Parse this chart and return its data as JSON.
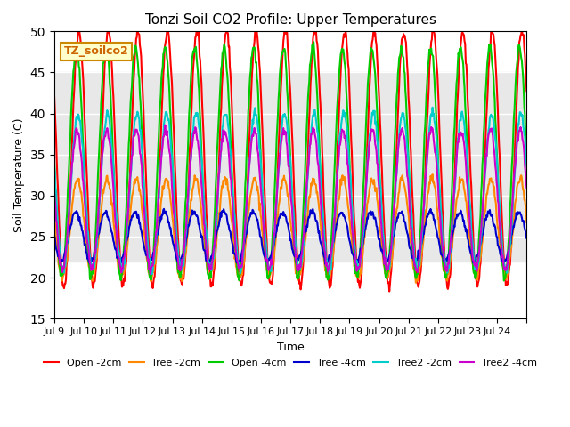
{
  "title": "Tonzi Soil CO2 Profile: Upper Temperatures",
  "ylabel": "Soil Temperature (C)",
  "xlabel": "Time",
  "ylim": [
    15,
    50
  ],
  "yticks": [
    15,
    20,
    25,
    30,
    35,
    40,
    45,
    50
  ],
  "x_labels": [
    "Jul 9",
    "Jul 10",
    "Jul 11",
    "Jul 12",
    "Jul 13",
    "Jul 14",
    "Jul 15",
    "Jul 16",
    "Jul 17",
    "Jul 18",
    "Jul 19",
    "Jul 20",
    "Jul 21",
    "Jul 22",
    "Jul 23",
    "Jul 24"
  ],
  "label_box_text": "TZ_soilco2",
  "label_box_color": "#ffffcc",
  "label_box_edge": "#cc8800",
  "shaded_band": [
    22,
    45
  ],
  "shaded_color": "#e8e8e8",
  "series": [
    {
      "name": "Open -2cm",
      "color": "#ff0000",
      "lw": 1.5
    },
    {
      "name": "Tree -2cm",
      "color": "#ff8800",
      "lw": 1.5
    },
    {
      "name": "Open -4cm",
      "color": "#00cc00",
      "lw": 1.5
    },
    {
      "name": "Tree -4cm",
      "color": "#0000cc",
      "lw": 1.5
    },
    {
      "name": "Tree2 -2cm",
      "color": "#00cccc",
      "lw": 1.5
    },
    {
      "name": "Tree2 -4cm",
      "color": "#cc00cc",
      "lw": 1.5
    }
  ],
  "n_days": 16,
  "pts_per_day": 48,
  "open2_peak": 50,
  "open2_min": 19,
  "tree2_peak": 32,
  "tree2_min": 21,
  "open4_peak": 48,
  "open4_min": 20,
  "tree4_peak": 28,
  "tree4_min": 22,
  "tree2_2_peak": 40,
  "tree2_2_min": 21,
  "tree2_4_peak": 39,
  "tree2_4_min": 21
}
